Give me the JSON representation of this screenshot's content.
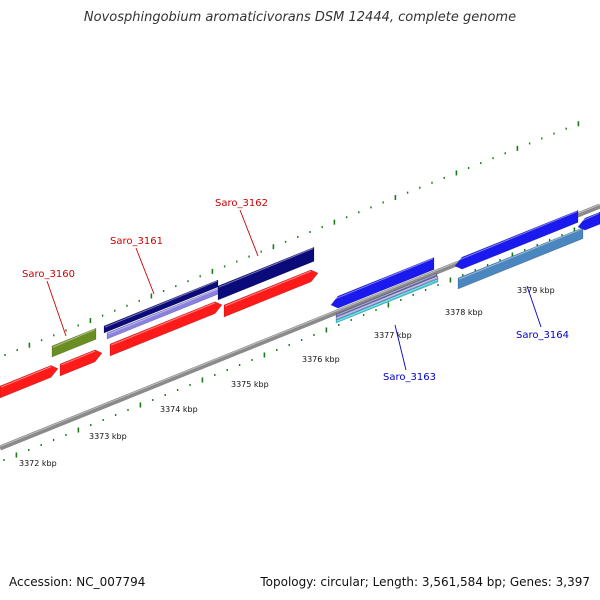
{
  "title": "Novosphingobium aromaticivorans DSM 12444, complete genome",
  "accession_text": "Accession: NC_007794",
  "summary_text": "Topology: circular; Length: 3,561,584 bp; Genes: 3,397",
  "colors": {
    "backbone": "#888888",
    "tick": "#1a7a1a",
    "forward_label": "#cc0000",
    "reverse_label": "#0000cc",
    "red_feature": "#ff1a1a",
    "navy_feature": "#0a0a7a",
    "blue_feature": "#1a1aee",
    "steel_feature": "#4a86c0",
    "olive_feature": "#6b8e23",
    "lavender_feature": "#8a80e0",
    "cyan_feature": "#30c8d8"
  },
  "scale_labels": [
    "3372 kbp",
    "3373 kbp",
    "3374 kbp",
    "3375 kbp",
    "3376 kbp",
    "3377 kbp",
    "3378 kbp",
    "3379 kbp"
  ],
  "gene_labels": [
    {
      "name": "Saro_3160",
      "strand": "forward"
    },
    {
      "name": "Saro_3161",
      "strand": "forward"
    },
    {
      "name": "Saro_3162",
      "strand": "forward"
    },
    {
      "name": "Saro_3163",
      "strand": "reverse"
    },
    {
      "name": "Saro_3164",
      "strand": "reverse"
    }
  ]
}
